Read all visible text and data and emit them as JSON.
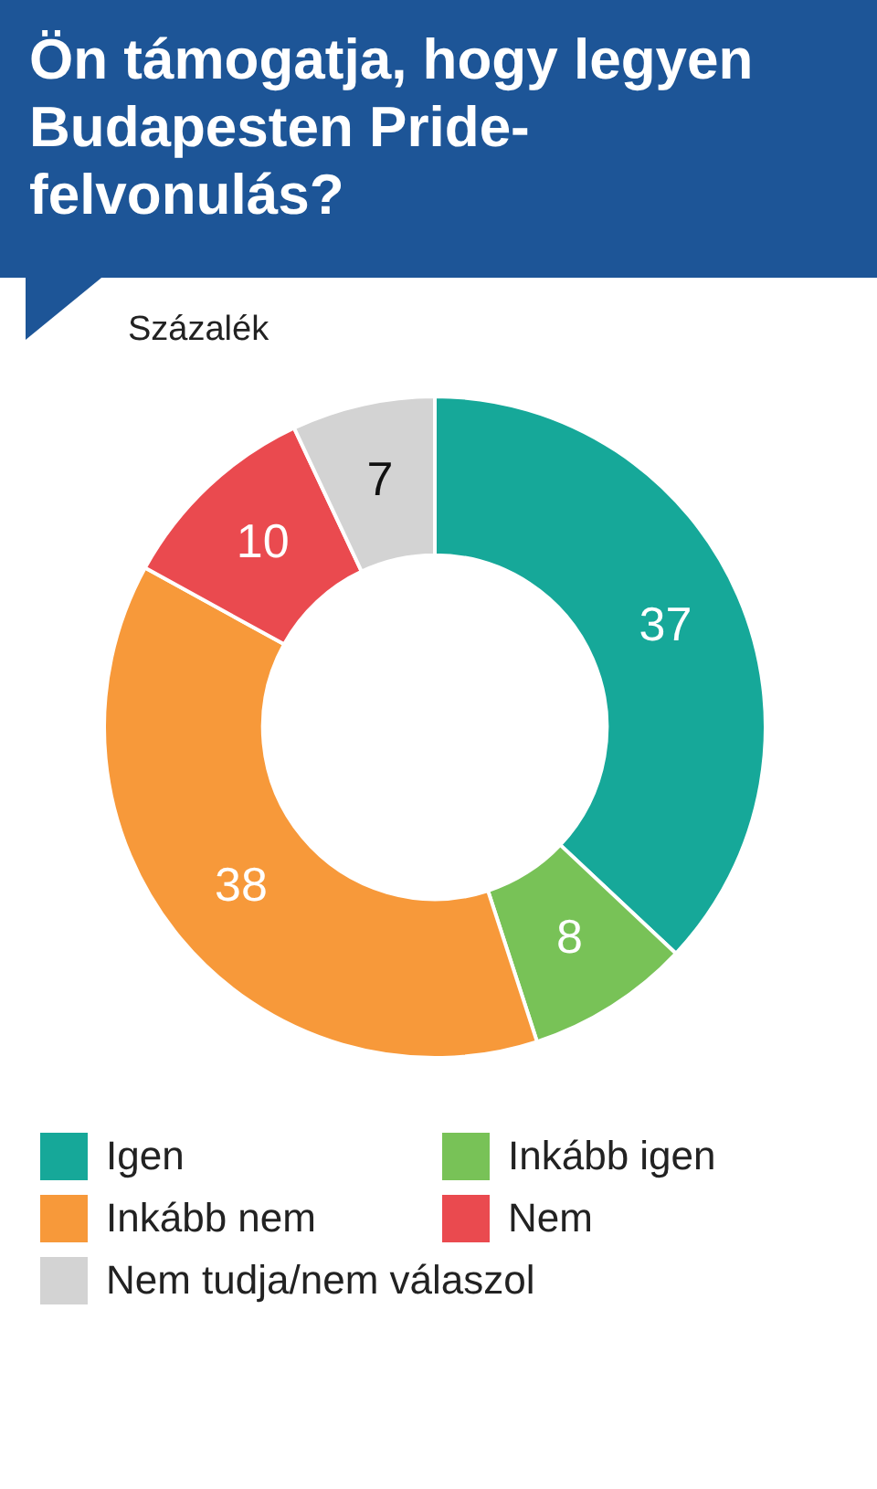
{
  "chart_data": {
    "type": "donut",
    "title": "Ön támogatja, hogy legyen Budapesten Pride-felvonulás?",
    "subtitle": "Százalék",
    "categories": [
      "Igen",
      "Inkább igen",
      "Inkább nem",
      "Nem",
      "Nem tudja/nem válaszol"
    ],
    "values": [
      37,
      8,
      38,
      10,
      7
    ],
    "colors": [
      "#16a899",
      "#78c257",
      "#f7993a",
      "#ea4a4f",
      "#d3d3d3"
    ],
    "data_labels": true,
    "legend": "bottom"
  }
}
